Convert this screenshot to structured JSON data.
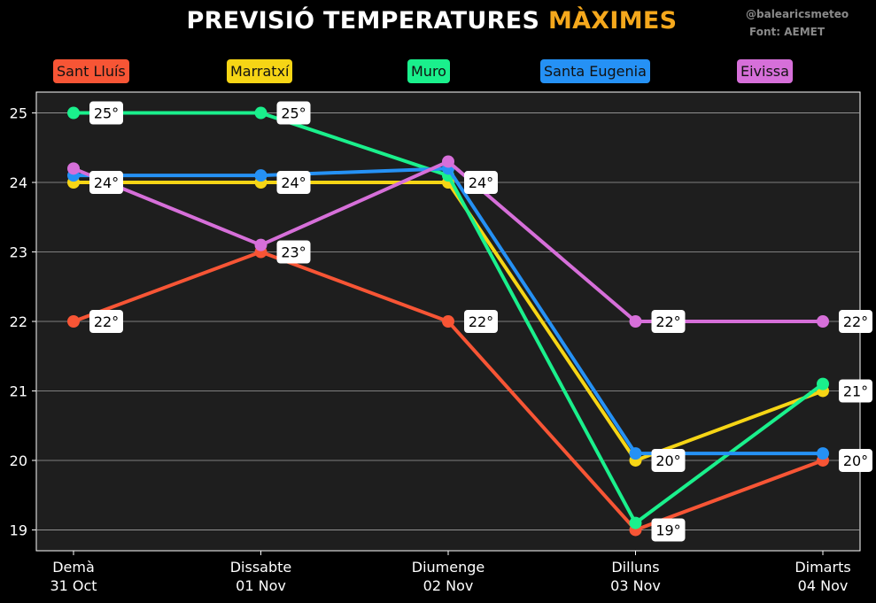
{
  "title": {
    "main": "PREVISIÓ TEMPERATURES",
    "accent": "MÀXIMES"
  },
  "credits": {
    "handle": "@balearicsmeteo",
    "source": "Font: AEMET"
  },
  "colors": {
    "background": "#000000",
    "plot_background": "#1e1e1e",
    "grid": "#a0a0a0",
    "title_accent": "#f5a81c"
  },
  "chart_data": {
    "type": "line",
    "categories": [
      [
        "Demà",
        "31 Oct"
      ],
      [
        "Dissabte",
        "01 Nov"
      ],
      [
        "Diumenge",
        "02 Nov"
      ],
      [
        "Dilluns",
        "03 Nov"
      ],
      [
        "Dimarts",
        "04 Nov"
      ]
    ],
    "ylim": [
      18.7,
      25.3
    ],
    "yticks": [
      19,
      20,
      21,
      22,
      23,
      24,
      25
    ],
    "grid": true,
    "legend_position": "top",
    "series": [
      {
        "name": "Sant Lluís",
        "color": "#f75535",
        "values": [
          22,
          23,
          22,
          19,
          20
        ]
      },
      {
        "name": "Marratxí",
        "color": "#f6d515",
        "values": [
          24,
          24,
          24,
          20,
          21
        ]
      },
      {
        "name": "Muro",
        "color": "#1af08c",
        "values": [
          25,
          25,
          24.1,
          19.1,
          21.1
        ]
      },
      {
        "name": "Santa Eugenia",
        "color": "#2591f5",
        "values": [
          24.1,
          24.1,
          24.2,
          20.1,
          20.1
        ]
      },
      {
        "name": "Eivissa",
        "color": "#d66fd9",
        "values": [
          24.2,
          23.1,
          24.3,
          22,
          22
        ]
      }
    ],
    "annotations": [
      {
        "category": 0,
        "value": 25,
        "text": "25°"
      },
      {
        "category": 0,
        "value": 24,
        "text": "24°"
      },
      {
        "category": 0,
        "value": 22,
        "text": "22°"
      },
      {
        "category": 1,
        "value": 25,
        "text": "25°"
      },
      {
        "category": 1,
        "value": 24,
        "text": "24°"
      },
      {
        "category": 1,
        "value": 23,
        "text": "23°"
      },
      {
        "category": 2,
        "value": 24,
        "text": "24°"
      },
      {
        "category": 2,
        "value": 22,
        "text": "22°"
      },
      {
        "category": 3,
        "value": 22,
        "text": "22°"
      },
      {
        "category": 3,
        "value": 20,
        "text": "20°"
      },
      {
        "category": 3,
        "value": 19,
        "text": "19°"
      },
      {
        "category": 4,
        "value": 22,
        "text": "22°"
      },
      {
        "category": 4,
        "value": 21,
        "text": "21°"
      },
      {
        "category": 4,
        "value": 20,
        "text": "20°"
      }
    ]
  }
}
